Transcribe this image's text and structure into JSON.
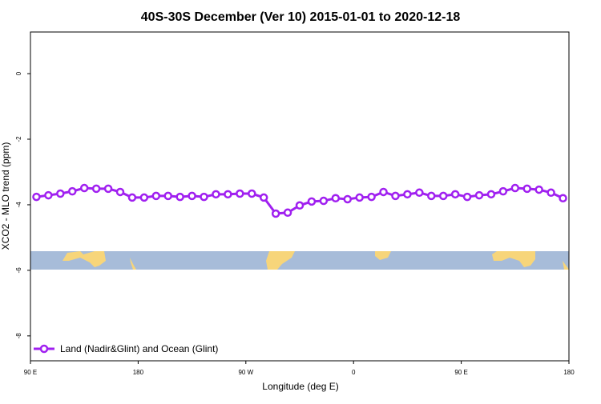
{
  "chart_data": {
    "type": "line",
    "title": "40S-30S December (Ver 10)   2015-01-01 to 2020-12-18",
    "x_label": "Longitude (deg E)",
    "y_label": "XCO2 - MLO trend (ppm)",
    "xlim": [
      90,
      540
    ],
    "ylim": [
      -8.76,
      1.27
    ],
    "xticks": [
      {
        "value": 90,
        "label": "90 E"
      },
      {
        "value": 180,
        "label": "180"
      },
      {
        "value": 270,
        "label": "90 W"
      },
      {
        "value": 360,
        "label": "0"
      },
      {
        "value": 450,
        "label": "90 E"
      },
      {
        "value": 540,
        "label": "180"
      }
    ],
    "yticks": [
      0,
      -2,
      -4,
      -6,
      -8
    ],
    "legend_position": "bottom-left",
    "x": [
      95,
      105,
      115,
      125,
      135,
      145,
      155,
      165,
      175,
      185,
      195,
      205,
      215,
      225,
      235,
      245,
      255,
      265,
      275,
      285,
      295,
      305,
      315,
      325,
      335,
      345,
      355,
      365,
      375,
      385,
      395,
      405,
      415,
      425,
      435,
      445,
      455,
      465,
      475,
      485,
      495,
      505,
      515,
      525,
      535
    ],
    "series": [
      {
        "name": "Land (Nadir&Glint) and Ocean (Glint)",
        "color": "#a020f0",
        "values": [
          -3.76,
          -3.71,
          -3.66,
          -3.59,
          -3.49,
          -3.51,
          -3.51,
          -3.61,
          -3.78,
          -3.78,
          -3.73,
          -3.73,
          -3.76,
          -3.73,
          -3.76,
          -3.68,
          -3.68,
          -3.66,
          -3.66,
          -3.78,
          -4.27,
          -4.24,
          -4.02,
          -3.9,
          -3.88,
          -3.8,
          -3.83,
          -3.78,
          -3.76,
          -3.61,
          -3.73,
          -3.68,
          -3.63,
          -3.73,
          -3.73,
          -3.68,
          -3.76,
          -3.71,
          -3.68,
          -3.59,
          -3.49,
          -3.51,
          -3.54,
          -3.63,
          -3.8
        ]
      }
    ]
  }
}
